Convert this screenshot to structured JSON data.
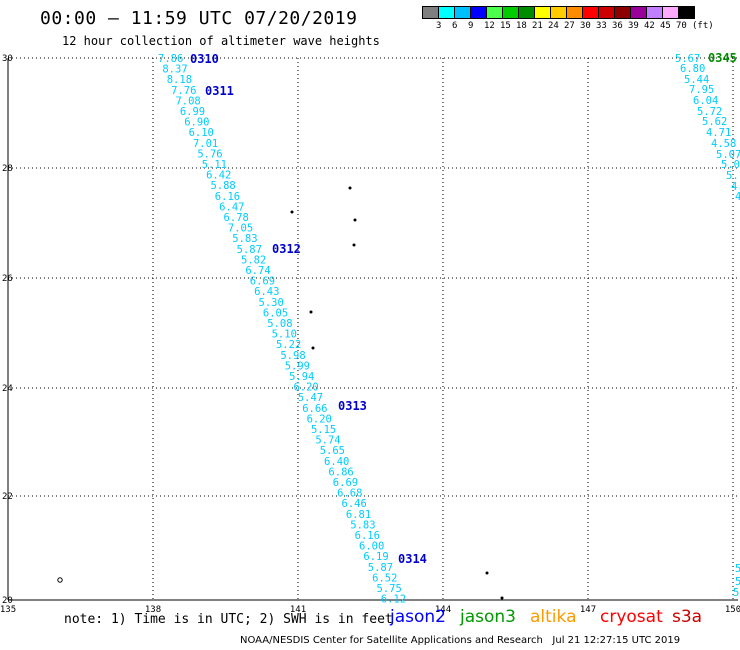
{
  "header": {
    "title": "00:00 – 11:59 UTC 07/20/2019",
    "subtitle": "12 hour collection of altimeter wave heights"
  },
  "legend": {
    "colors": [
      "#7f7f7f",
      "#00ffff",
      "#00bfff",
      "#0000ff",
      "#4cff4c",
      "#00cc00",
      "#008c00",
      "#ffff00",
      "#ffcc00",
      "#ff8c00",
      "#ff0000",
      "#cc0000",
      "#8c0000",
      "#990099",
      "#bf7fff",
      "#ffaaff",
      "#000000"
    ],
    "labels": [
      "3",
      "6",
      "9",
      "12",
      "15",
      "18",
      "21",
      "24",
      "27",
      "30",
      "33",
      "36",
      "39",
      "42",
      "45",
      "70",
      "(ft)"
    ]
  },
  "axes": {
    "lon_labels": [
      "135",
      "138",
      "141",
      "144",
      "147",
      "150"
    ],
    "lat_labels": [
      "30",
      "28",
      "26",
      "24",
      "22",
      "20"
    ]
  },
  "track_labels": [
    {
      "text": "0310",
      "color": "#0000cc"
    },
    {
      "text": "0311",
      "color": "#0000cc"
    },
    {
      "text": "0312",
      "color": "#0000cc"
    },
    {
      "text": "0313",
      "color": "#0000cc"
    },
    {
      "text": "0314",
      "color": "#0000cc"
    },
    {
      "text": "0345",
      "color": "#008c00"
    }
  ],
  "main_track": [
    "7.86",
    "8.37",
    "8.18",
    "7.76",
    "7.08",
    "6.99",
    "6.90",
    "6.10",
    "7.01",
    "5.76",
    "5.11",
    "6.42",
    "5.88",
    "6.16",
    "6.47",
    "6.78",
    "7.05",
    "5.83",
    "5.87",
    "5.82",
    "6.74",
    "6.69",
    "6.43",
    "5.30",
    "6.05",
    "5.08",
    "5.10",
    "5.22",
    "5.98",
    "5.99",
    "5.94",
    "6.20",
    "5.47",
    "6.66",
    "6.20",
    "5.15",
    "5.74",
    "5.65",
    "6.40",
    "6.86",
    "6.69",
    "6.68",
    "6.46",
    "6.81",
    "5.83",
    "6.16",
    "6.00",
    "6.19",
    "5.87",
    "6.52",
    "5.75",
    "6.12"
  ],
  "right_track": [
    "5.67",
    "6.80",
    "5.44",
    "7.95",
    "6.04",
    "5.72",
    "5.62",
    "4.71",
    "4.58",
    "5.07",
    "5.0",
    "5.1",
    "4.",
    "4"
  ],
  "right_bottom": [
    "5",
    "5",
    "5."
  ],
  "footer": {
    "note": "note: 1) Time is in UTC; 2) SWH is in feet",
    "satellites": [
      {
        "name": "jason2",
        "color": "#0000ff"
      },
      {
        "name": "jason3",
        "color": "#009900"
      },
      {
        "name": "altika",
        "color": "#ff9900"
      },
      {
        "name": "cryosat",
        "color": "#ff0000"
      },
      {
        "name": "s3a",
        "color": "#cc0000"
      }
    ],
    "credit": "NOAA/NESDIS Center for Satellite Applications and Research",
    "timestamp": "Jul 21 12:27:15 UTC 2019"
  }
}
